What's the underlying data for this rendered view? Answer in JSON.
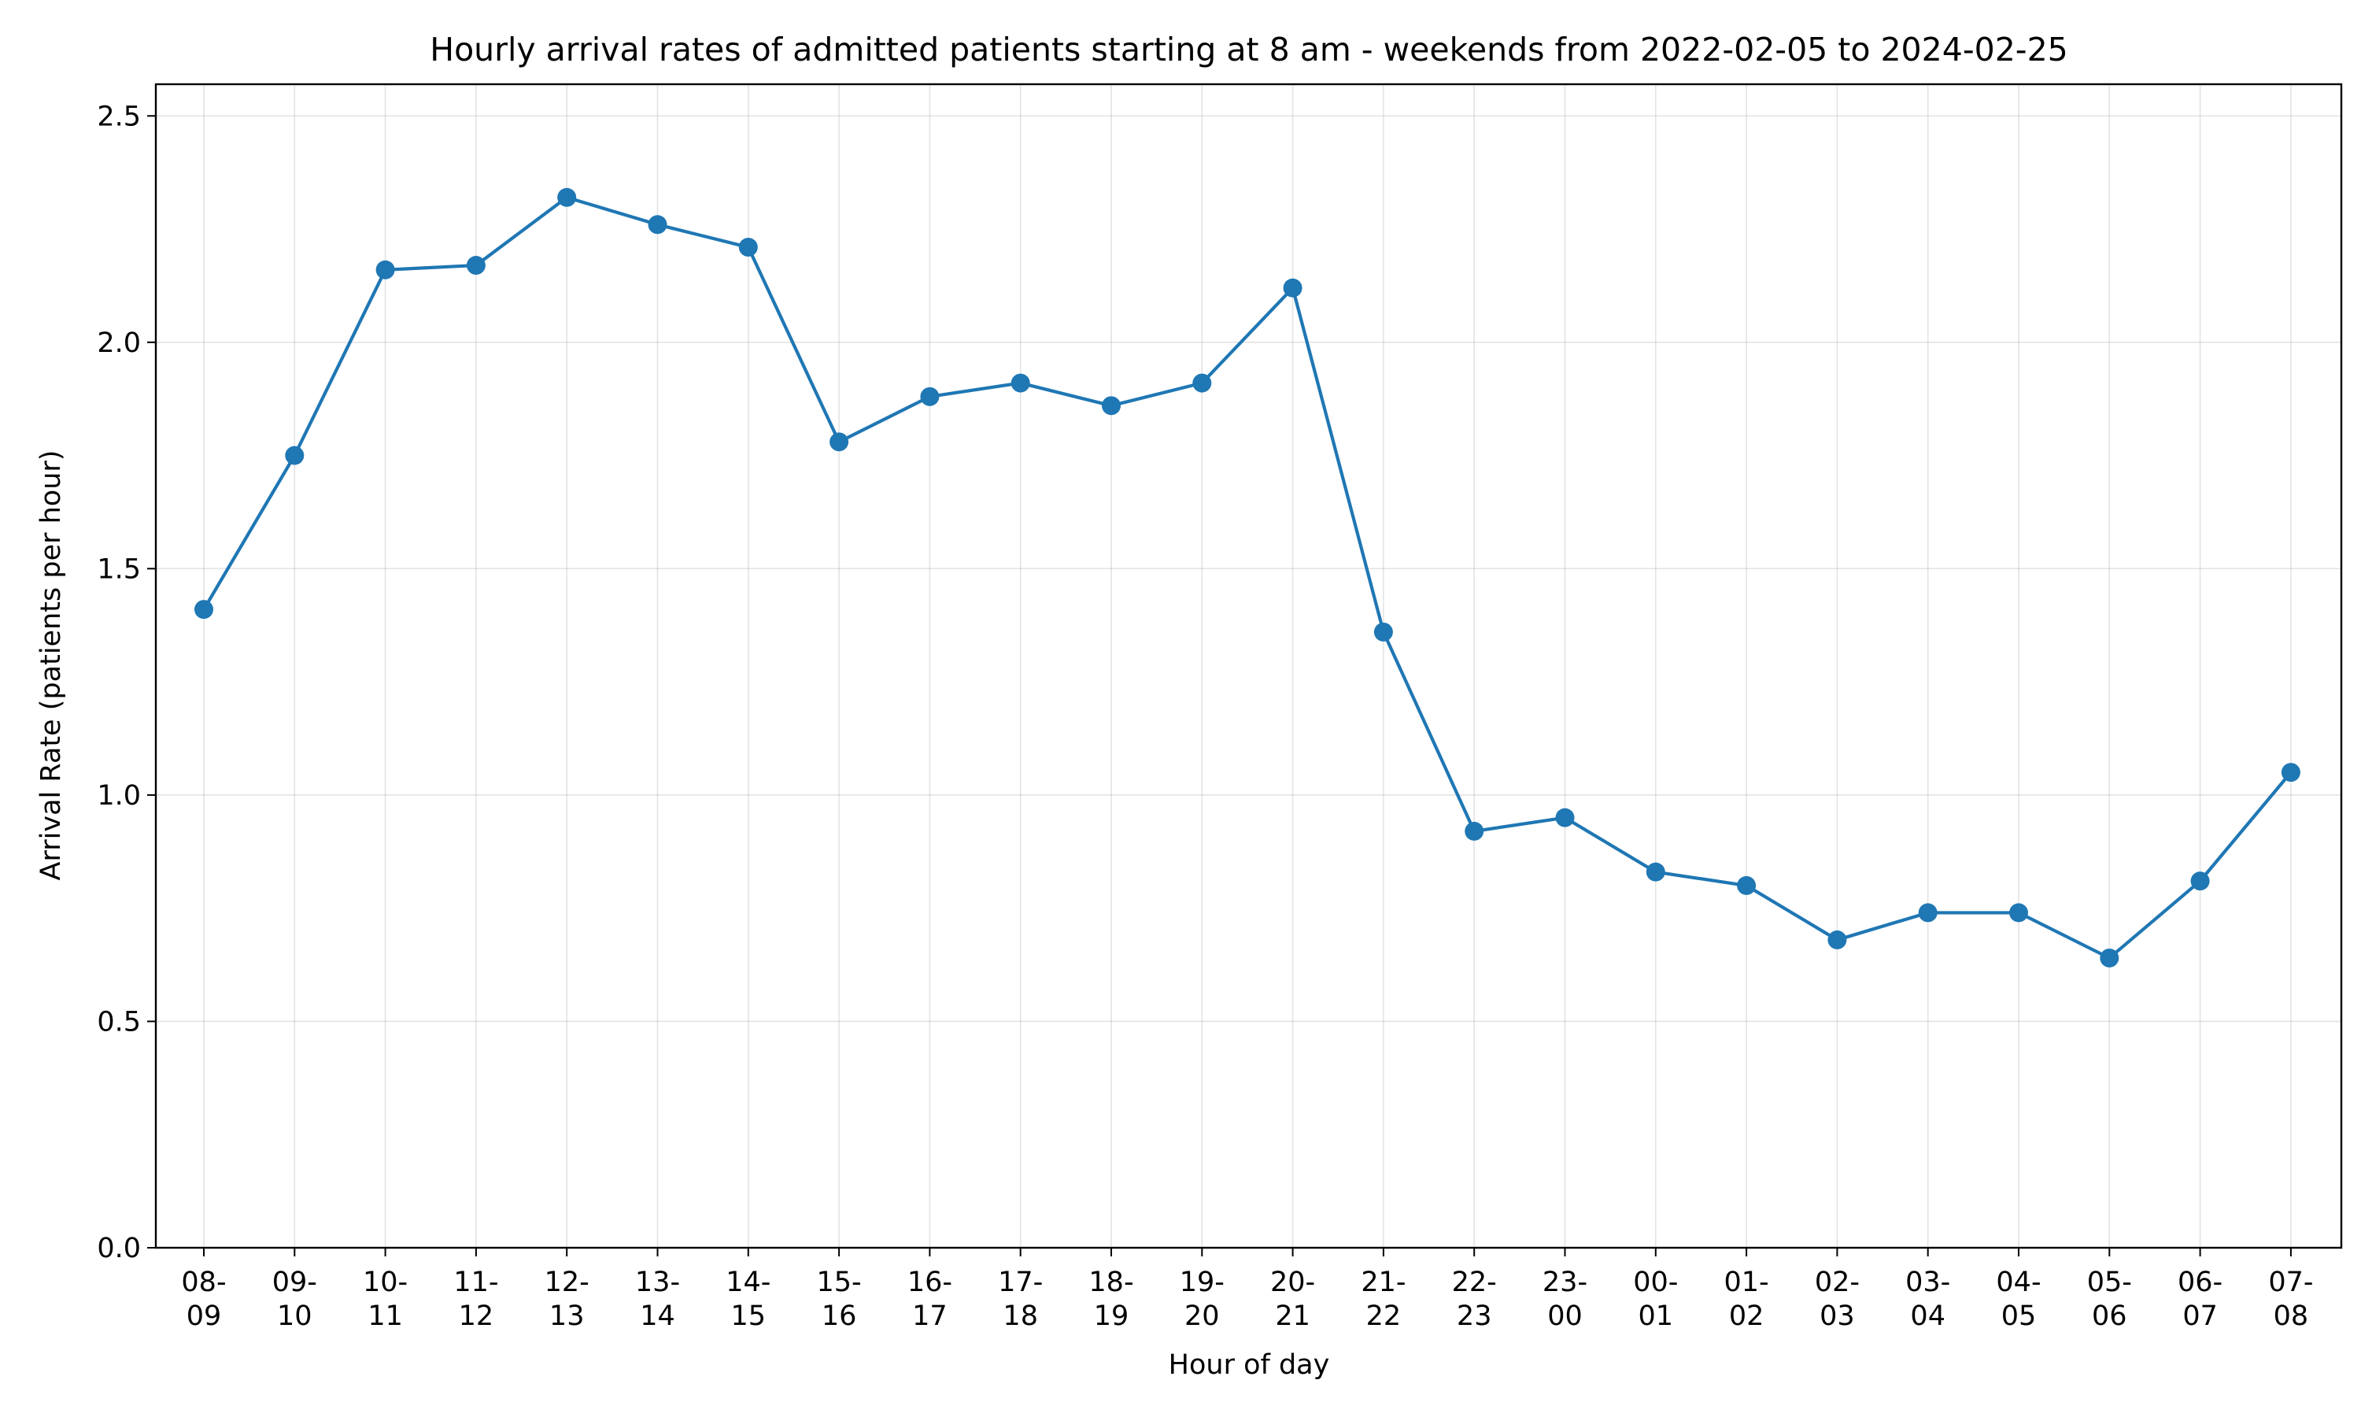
{
  "chart_data": {
    "type": "line",
    "title": "Hourly arrival rates of admitted patients starting at 8 am - weekends from 2022-02-05 to 2024-02-25",
    "xlabel": "Hour of day",
    "ylabel": "Arrival Rate (patients per hour)",
    "categories": [
      [
        "08-",
        "09"
      ],
      [
        "09-",
        "10"
      ],
      [
        "10-",
        "11"
      ],
      [
        "11-",
        "12"
      ],
      [
        "12-",
        "13"
      ],
      [
        "13-",
        "14"
      ],
      [
        "14-",
        "15"
      ],
      [
        "15-",
        "16"
      ],
      [
        "16-",
        "17"
      ],
      [
        "17-",
        "18"
      ],
      [
        "18-",
        "19"
      ],
      [
        "19-",
        "20"
      ],
      [
        "20-",
        "21"
      ],
      [
        "21-",
        "22"
      ],
      [
        "22-",
        "23"
      ],
      [
        "23-",
        "00"
      ],
      [
        "00-",
        "01"
      ],
      [
        "01-",
        "02"
      ],
      [
        "02-",
        "03"
      ],
      [
        "03-",
        "04"
      ],
      [
        "04-",
        "05"
      ],
      [
        "05-",
        "06"
      ],
      [
        "06-",
        "07"
      ],
      [
        "07-",
        "08"
      ]
    ],
    "series": [
      {
        "values": [
          1.41,
          1.75,
          2.16,
          2.17,
          2.32,
          2.26,
          2.21,
          1.78,
          1.88,
          1.91,
          1.86,
          1.91,
          2.12,
          1.36,
          0.92,
          0.95,
          0.83,
          0.8,
          0.68,
          0.74,
          0.74,
          0.64,
          0.81,
          1.05
        ],
        "color": "#1f77b4"
      }
    ],
    "ylim": [
      0,
      2.57
    ],
    "yticks": [
      "0.0",
      "0.5",
      "1.0",
      "1.5",
      "2.0",
      "2.5"
    ],
    "grid": true,
    "legend": "none"
  }
}
